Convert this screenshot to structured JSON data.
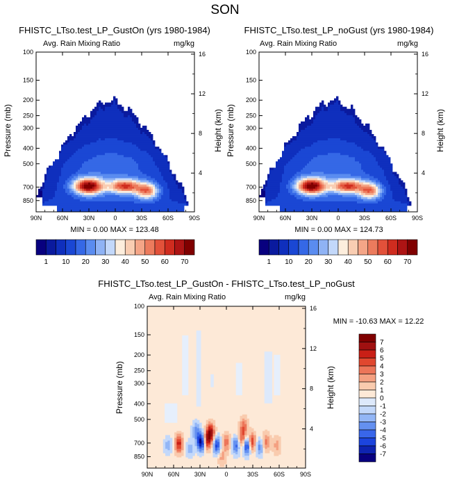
{
  "figure": {
    "title": "SON"
  },
  "colors": {
    "field_palette": [
      "#08007f",
      "#0a1a9e",
      "#0f2fbd",
      "#1a47d4",
      "#3568e6",
      "#5a8cf0",
      "#8fb3f5",
      "#c3d8fa",
      "#fdeedd",
      "#f9cdb2",
      "#f4a587",
      "#ec7b5d",
      "#e2513a",
      "#cf2c1f",
      "#ad1414",
      "#800000"
    ],
    "diff_palette": [
      "#08007f",
      "#0e23b0",
      "#1c44dd",
      "#3966ea",
      "#6490f0",
      "#93b6f6",
      "#c3d8fa",
      "#dde9fb",
      "#fde9d7",
      "#f9cbae",
      "#f4a081",
      "#ec7559",
      "#e0472f",
      "#c91f16",
      "#a01010",
      "#800000"
    ],
    "diff_background": "#fde9d7"
  },
  "chart_data": [
    {
      "type": "heatmap",
      "title": "FHISTC_LTso.test_LP_GustOn (yrs 1980-1984)",
      "left_subtitle": "Avg. Rain Mixing Ratio",
      "right_subtitle": "mg/kg",
      "ylabel": "Pressure (mb)",
      "right_axis_label": "Height (km)",
      "x_ticks": [
        "90N",
        "60N",
        "30N",
        "0",
        "30S",
        "60S",
        "90S"
      ],
      "y_ticks": [
        "100",
        "150",
        "200",
        "250",
        "300",
        "400",
        "500",
        "700",
        "850"
      ],
      "y_tick_values": [
        100,
        150,
        200,
        250,
        300,
        400,
        500,
        700,
        850
      ],
      "ylim": [
        1000,
        100
      ],
      "y_scale": "log",
      "height_ticks": [
        "4",
        "8",
        "12",
        "16"
      ],
      "height_tick_values": [
        4,
        8,
        12,
        16
      ],
      "stats": "MIN =   0.00  MAX = 123.48",
      "min": 0.0,
      "max": 123.48,
      "colorbar_labels": [
        "1",
        "10",
        "20",
        "30",
        "40",
        "50",
        "60",
        "70"
      ]
    },
    {
      "type": "heatmap",
      "title": "FHISTC_LTso.test_LP_noGust (yrs 1980-1984)",
      "left_subtitle": "Avg. Rain Mixing Ratio",
      "right_subtitle": "mg/kg",
      "ylabel": "Pressure (mb)",
      "right_axis_label": "Height (km)",
      "x_ticks": [
        "90N",
        "60N",
        "30N",
        "0",
        "30S",
        "60S",
        "90S"
      ],
      "y_ticks": [
        "100",
        "150",
        "200",
        "250",
        "300",
        "400",
        "500",
        "700",
        "850"
      ],
      "y_tick_values": [
        100,
        150,
        200,
        250,
        300,
        400,
        500,
        700,
        850
      ],
      "ylim": [
        1000,
        100
      ],
      "y_scale": "log",
      "height_ticks": [
        "4",
        "8",
        "12",
        "16"
      ],
      "height_tick_values": [
        4,
        8,
        12,
        16
      ],
      "stats": "MIN =   0.00  MAX = 124.73",
      "min": 0.0,
      "max": 124.73,
      "colorbar_labels": [
        "1",
        "10",
        "20",
        "30",
        "40",
        "50",
        "60",
        "70"
      ]
    },
    {
      "type": "heatmap",
      "title": "FHISTC_LTso.test_LP_GustOn - FHISTC_LTso.test_LP_noGust",
      "left_subtitle": "Avg. Rain Mixing Ratio",
      "right_subtitle": "mg/kg",
      "ylabel": "Pressure (mb)",
      "right_axis_label": "Height (km)",
      "x_ticks": [
        "90N",
        "60N",
        "30N",
        "0",
        "30S",
        "60S",
        "90S"
      ],
      "y_ticks": [
        "100",
        "150",
        "200",
        "250",
        "300",
        "400",
        "500",
        "700",
        "850"
      ],
      "y_tick_values": [
        100,
        150,
        200,
        250,
        300,
        400,
        500,
        700,
        850
      ],
      "ylim": [
        1000,
        100
      ],
      "y_scale": "log",
      "height_ticks": [
        "4",
        "8",
        "12",
        "16"
      ],
      "height_tick_values": [
        4,
        8,
        12,
        16
      ],
      "stats": "MIN = -10.63  MAX =  12.22",
      "min": -10.63,
      "max": 12.22,
      "colorbar_labels": [
        "7",
        "6",
        "5",
        "4",
        "3",
        "2",
        "1",
        "0",
        "-1",
        "-2",
        "-3",
        "-4",
        "-5",
        "-6",
        "-7"
      ]
    }
  ]
}
